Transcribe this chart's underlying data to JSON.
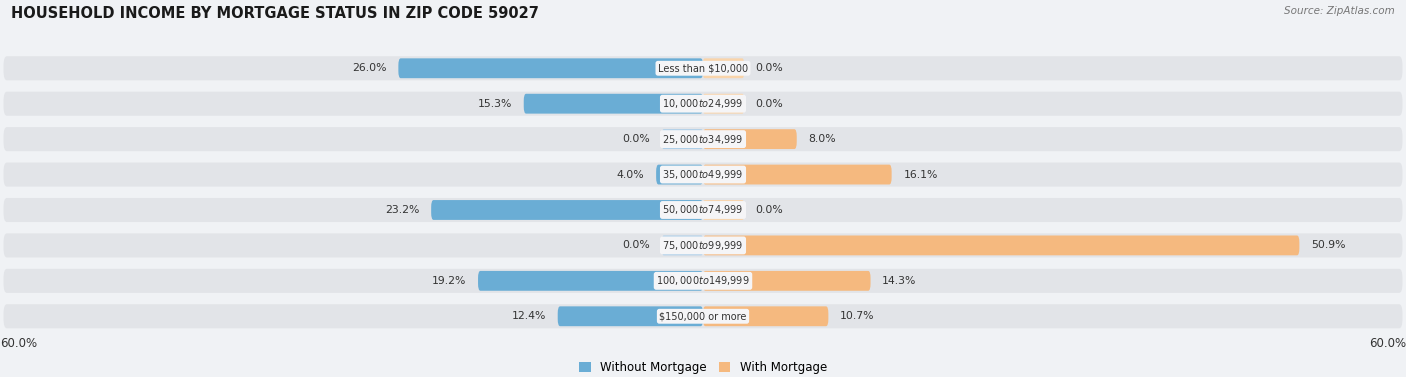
{
  "title": "HOUSEHOLD INCOME BY MORTGAGE STATUS IN ZIP CODE 59027",
  "source": "Source: ZipAtlas.com",
  "categories": [
    "Less than $10,000",
    "$10,000 to $24,999",
    "$25,000 to $34,999",
    "$35,000 to $49,999",
    "$50,000 to $74,999",
    "$75,000 to $99,999",
    "$100,000 to $149,999",
    "$150,000 or more"
  ],
  "without_mortgage": [
    26.0,
    15.3,
    0.0,
    4.0,
    23.2,
    0.0,
    19.2,
    12.4
  ],
  "with_mortgage": [
    0.0,
    0.0,
    8.0,
    16.1,
    0.0,
    50.9,
    14.3,
    10.7
  ],
  "color_without": "#6aadd5",
  "color_with": "#f5b97f",
  "color_without_zero": "#aacde8",
  "color_with_zero": "#f9d4aa",
  "axis_limit": 60.0,
  "fig_bg": "#f0f2f5",
  "row_bg": "#e2e4e8",
  "label_pill_bg": "#f5f5f7",
  "text_dark": "#333333",
  "text_light": "#777777",
  "zero_bar_width": 3.5
}
